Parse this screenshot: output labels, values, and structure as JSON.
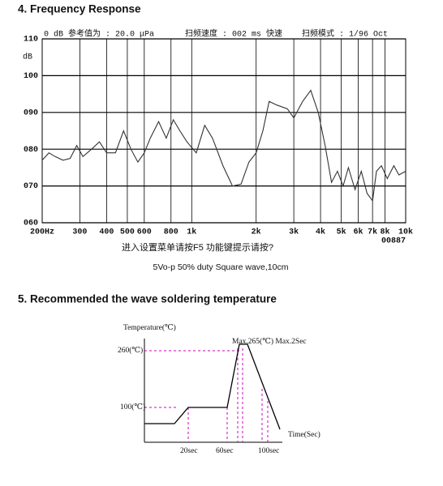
{
  "sections": [
    {
      "heading": "4. Frequency Response",
      "caption": "5Vo-p 50% duty Square wave,10cm"
    },
    {
      "heading": "5. Recommended the wave soldering temperature"
    }
  ],
  "chart_data": {
    "type": "line",
    "ylabel": "dB",
    "header": [
      "0 dB 参考值为 : 20.0 μPa",
      "扫频速度 : 002 ms 快速",
      "扫频模式 : 1/96  Oct"
    ],
    "footer": "进入设置菜单请按F5  功能键提示请按?",
    "counter": "00887",
    "log_x": true,
    "color": "#333333",
    "grid": true,
    "xlim": [
      200,
      10000
    ],
    "ylim": [
      60,
      110
    ],
    "yticks": [
      110,
      100,
      {
        "value": 90,
        "label": "090"
      },
      {
        "value": 80,
        "label": "080"
      },
      {
        "value": 70,
        "label": "070"
      },
      {
        "value": 60,
        "label": "060"
      }
    ],
    "xticks": [
      {
        "value": 200,
        "label": "200Hz"
      },
      300,
      400,
      500,
      600,
      800,
      {
        "value": 1000,
        "label": "1k"
      },
      {
        "value": 2000,
        "label": "2k"
      },
      {
        "value": 3000,
        "label": "3k"
      },
      {
        "value": 4000,
        "label": "4k"
      },
      {
        "value": 5000,
        "label": "5k"
      },
      {
        "value": 6000,
        "label": "6k"
      },
      {
        "value": 7000,
        "label": "7k"
      },
      {
        "value": 8000,
        "label": "8k"
      },
      {
        "value": 10000,
        "label": "10k"
      }
    ],
    "x": [
      200,
      215,
      230,
      250,
      270,
      290,
      310,
      340,
      370,
      400,
      440,
      480,
      520,
      560,
      600,
      640,
      700,
      760,
      820,
      880,
      950,
      1050,
      1150,
      1250,
      1400,
      1550,
      1700,
      1850,
      2000,
      2150,
      2300,
      2500,
      2800,
      3000,
      3300,
      3600,
      3900,
      4200,
      4500,
      4800,
      5100,
      5400,
      5800,
      6200,
      6600,
      7000,
      7300,
      7700,
      8200,
      8800,
      9300,
      10000
    ],
    "values": [
      77,
      79,
      78,
      77,
      77.5,
      81,
      78,
      80,
      82,
      79,
      79,
      85,
      80,
      76.5,
      79,
      83,
      87.5,
      83,
      88,
      85,
      82,
      79,
      86.5,
      83,
      75.5,
      70,
      70.5,
      76.5,
      79,
      85,
      93,
      92,
      91,
      88.5,
      93,
      96,
      90,
      81,
      71,
      74,
      70,
      75,
      69,
      74,
      68,
      66,
      74,
      75.5,
      72,
      75.5,
      73,
      74
    ]
  },
  "profile_diagram": {
    "y_axis_label": "Temperature(℃)",
    "x_axis_label": "Time(Sec)",
    "peak_label": "Max.265(℃) Max.2Sec",
    "level_labels": [
      "260(℃)",
      "100(℃)"
    ],
    "time_labels": [
      "20sec",
      "60sec",
      "100sec"
    ]
  }
}
